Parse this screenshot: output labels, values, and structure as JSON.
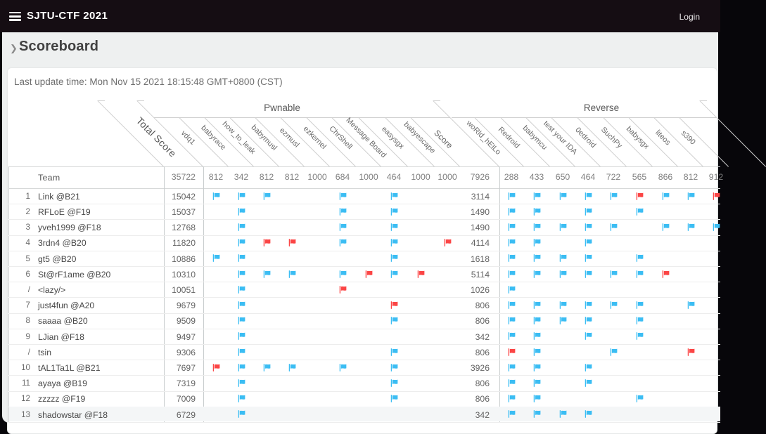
{
  "navbar": {
    "menu_icon": "hamburger-menu",
    "brand": "SJTU-CTF 2021",
    "login": "Login"
  },
  "breadcrumb": {
    "chevron": "❯",
    "title": "Scoreboard"
  },
  "update_line": "Last update time: Mon Nov 15 2021 18:15:48 GMT+0800 (CST)",
  "colors": {
    "flag_solved": "#3bbdf3",
    "flag_first_blood": "#fb4545",
    "navbar_bg": "#150d13"
  },
  "scoreboard": {
    "team_column_label": "Team",
    "total_score_label": "Total Score",
    "total_max": "35722",
    "categories": [
      {
        "name": "Pwnable",
        "challenges": [
          {
            "name": "vdq1",
            "max": "812"
          },
          {
            "name": "babyrace",
            "max": "342"
          },
          {
            "name": "how_to_leak",
            "max": "812"
          },
          {
            "name": "babymusl",
            "max": "812"
          },
          {
            "name": "ezmusl",
            "max": "1000"
          },
          {
            "name": "ezkernel",
            "max": "684"
          },
          {
            "name": "ChrShell",
            "max": "1000"
          },
          {
            "name": "Message Board",
            "max": "464"
          },
          {
            "name": "easysgx",
            "max": "1000"
          },
          {
            "name": "babyescape",
            "max": "1000"
          }
        ],
        "score_label": "Score",
        "score_max": "7926"
      },
      {
        "name": "Reverse",
        "challenges": [
          {
            "name": "woRld_hElLo",
            "max": "288"
          },
          {
            "name": "Redroid",
            "max": "433"
          },
          {
            "name": "babymcu",
            "max": "650"
          },
          {
            "name": "test your IDA",
            "max": "464"
          },
          {
            "name": "0edroid",
            "max": "722"
          },
          {
            "name": "SuchPy",
            "max": "565"
          },
          {
            "name": "babysgx",
            "max": "866"
          },
          {
            "name": "liteos",
            "max": "812"
          },
          {
            "name": "s390",
            "max": "912"
          }
        ]
      }
    ],
    "rows": [
      {
        "rank": "1",
        "team": "Link @B21",
        "total": "15042",
        "pwn_score": "3114",
        "pwn": [
          "b",
          "b",
          "b",
          "",
          "",
          "b",
          "",
          "b",
          "",
          ""
        ],
        "rev": [
          "b",
          "b",
          "b",
          "b",
          "b",
          "r",
          "b",
          "b",
          "r"
        ]
      },
      {
        "rank": "2",
        "team": "RFLoE @F19",
        "total": "15037",
        "pwn_score": "1490",
        "pwn": [
          "",
          "b",
          "",
          "",
          "",
          "b",
          "",
          "b",
          "",
          ""
        ],
        "rev": [
          "b",
          "b",
          "",
          "b",
          "",
          "b",
          "",
          "",
          ""
        ]
      },
      {
        "rank": "3",
        "team": "yveh1999 @F18",
        "total": "12768",
        "pwn_score": "1490",
        "pwn": [
          "",
          "b",
          "",
          "",
          "",
          "b",
          "",
          "b",
          "",
          ""
        ],
        "rev": [
          "b",
          "b",
          "b",
          "b",
          "b",
          "",
          "b",
          "b",
          "b"
        ]
      },
      {
        "rank": "4",
        "team": "3rdn4 @B20",
        "total": "11820",
        "pwn_score": "4114",
        "pwn": [
          "",
          "b",
          "r",
          "r",
          "",
          "b",
          "",
          "b",
          "",
          "r"
        ],
        "rev": [
          "b",
          "b",
          "",
          "b",
          "",
          "",
          "",
          "",
          ""
        ]
      },
      {
        "rank": "5",
        "team": "gt5 @B20",
        "total": "10886",
        "pwn_score": "1618",
        "pwn": [
          "b",
          "b",
          "",
          "",
          "",
          "",
          "",
          "b",
          "",
          ""
        ],
        "rev": [
          "b",
          "b",
          "b",
          "b",
          "",
          "b",
          "",
          "",
          ""
        ]
      },
      {
        "rank": "6",
        "team": "St@rF1ame @B20",
        "total": "10310",
        "pwn_score": "5114",
        "pwn": [
          "",
          "b",
          "b",
          "b",
          "",
          "b",
          "r",
          "b",
          "r",
          ""
        ],
        "rev": [
          "b",
          "b",
          "b",
          "b",
          "b",
          "b",
          "r",
          "",
          ""
        ]
      },
      {
        "rank": "/",
        "team": "<lazy/>",
        "total": "10051",
        "pwn_score": "1026",
        "pwn": [
          "",
          "b",
          "",
          "",
          "",
          "r",
          "",
          "",
          "",
          ""
        ],
        "rev": [
          "b",
          "",
          "",
          "",
          "",
          "",
          "",
          "",
          ""
        ]
      },
      {
        "rank": "7",
        "team": "just4fun @A20",
        "total": "9679",
        "pwn_score": "806",
        "pwn": [
          "",
          "b",
          "",
          "",
          "",
          "",
          "",
          "r",
          "",
          ""
        ],
        "rev": [
          "b",
          "b",
          "b",
          "b",
          "b",
          "b",
          "",
          "b",
          ""
        ]
      },
      {
        "rank": "8",
        "team": "saaaa @B20",
        "total": "9509",
        "pwn_score": "806",
        "pwn": [
          "",
          "b",
          "",
          "",
          "",
          "",
          "",
          "b",
          "",
          ""
        ],
        "rev": [
          "b",
          "b",
          "b",
          "b",
          "",
          "b",
          "",
          "",
          ""
        ]
      },
      {
        "rank": "9",
        "team": "LJian @F18",
        "total": "9497",
        "pwn_score": "342",
        "pwn": [
          "",
          "b",
          "",
          "",
          "",
          "",
          "",
          "",
          "",
          ""
        ],
        "rev": [
          "b",
          "b",
          "",
          "b",
          "",
          "b",
          "",
          "",
          ""
        ]
      },
      {
        "rank": "/",
        "team": "tsin",
        "total": "9306",
        "pwn_score": "806",
        "pwn": [
          "",
          "b",
          "",
          "",
          "",
          "",
          "",
          "b",
          "",
          ""
        ],
        "rev": [
          "r",
          "b",
          "",
          "",
          "b",
          "",
          "",
          "r",
          ""
        ]
      },
      {
        "rank": "10",
        "team": "tAL1Ta1L @B21",
        "total": "7697",
        "pwn_score": "3926",
        "pwn": [
          "r",
          "b",
          "b",
          "b",
          "",
          "b",
          "",
          "b",
          "",
          ""
        ],
        "rev": [
          "b",
          "b",
          "",
          "b",
          "",
          "",
          "",
          "",
          ""
        ]
      },
      {
        "rank": "11",
        "team": "ayaya @B19",
        "total": "7319",
        "pwn_score": "806",
        "pwn": [
          "",
          "b",
          "",
          "",
          "",
          "",
          "",
          "b",
          "",
          ""
        ],
        "rev": [
          "b",
          "b",
          "",
          "b",
          "",
          "",
          "",
          "",
          ""
        ]
      },
      {
        "rank": "12",
        "team": "zzzzz @F19",
        "total": "7009",
        "pwn_score": "806",
        "pwn": [
          "",
          "b",
          "",
          "",
          "",
          "",
          "",
          "b",
          "",
          ""
        ],
        "rev": [
          "b",
          "b",
          "",
          "",
          "",
          "b",
          "",
          "",
          ""
        ]
      },
      {
        "rank": "13",
        "team": "shadowstar @F18",
        "total": "6729",
        "pwn_score": "342",
        "pwn": [
          "",
          "b",
          "",
          "",
          "",
          "",
          "",
          "",
          "",
          ""
        ],
        "rev": [
          "b",
          "b",
          "b",
          "b",
          "",
          "",
          "",
          "",
          ""
        ]
      }
    ]
  }
}
